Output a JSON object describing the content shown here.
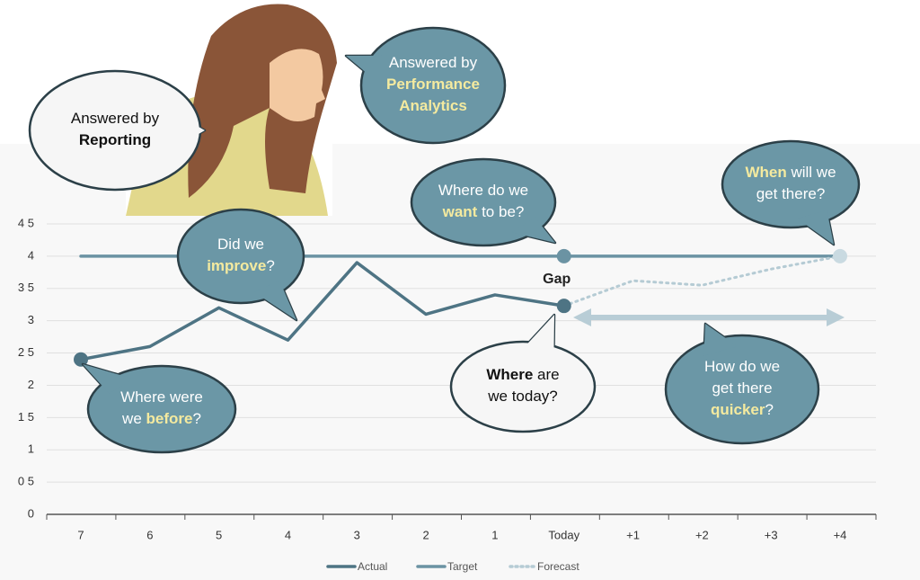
{
  "chart_data": {
    "type": "line",
    "categories": [
      "7",
      "6",
      "5",
      "4",
      "3",
      "2",
      "1",
      "Today",
      "+1",
      "+2",
      "+3",
      "+4"
    ],
    "series": [
      {
        "name": "Actual",
        "color": "#4e7484",
        "style": "solid",
        "values": [
          2.4,
          2.6,
          3.2,
          2.7,
          3.9,
          3.1,
          3.4,
          3.23,
          null,
          null,
          null,
          null
        ]
      },
      {
        "name": "Target",
        "color": "#6b93a3",
        "style": "solid",
        "values": [
          4,
          4,
          4,
          4,
          4,
          4,
          4,
          4,
          4,
          4,
          4,
          4
        ]
      },
      {
        "name": "Forecast",
        "color": "#b5cbd4",
        "style": "dotted",
        "values": [
          null,
          null,
          null,
          null,
          null,
          null,
          null,
          3.23,
          3.62,
          3.55,
          3.8,
          4
        ]
      }
    ],
    "ylim": [
      0,
      4.5
    ],
    "yticks": [
      0,
      {
        "value": 0.5,
        "label": "0 5"
      },
      1,
      {
        "value": 1.5,
        "label": "1 5"
      },
      2,
      {
        "value": 2.5,
        "label": "2 5"
      },
      3,
      {
        "value": 3.5,
        "label": "3 5"
      },
      4,
      {
        "value": 4.5,
        "label": "4 5"
      }
    ],
    "grid": true,
    "gap_label": "Gap",
    "annotations": [
      {
        "fill": "white",
        "lines": [
          [
            {
              "text": "Answered by"
            }
          ],
          [
            {
              "text": "Reporting",
              "emphasis": "bold"
            }
          ]
        ]
      },
      {
        "fill": "teal",
        "lines": [
          [
            {
              "text": "Answered by"
            }
          ],
          [
            {
              "text": "Performance",
              "emphasis": "highlight"
            }
          ],
          [
            {
              "text": "Analytics",
              "emphasis": "highlight"
            }
          ]
        ]
      },
      {
        "fill": "teal",
        "lines": [
          [
            {
              "text": "Did we"
            }
          ],
          [
            {
              "text": "improve",
              "emphasis": "highlight"
            },
            {
              "text": "?"
            }
          ]
        ]
      },
      {
        "fill": "teal",
        "lines": [
          [
            {
              "text": "Where do we"
            }
          ],
          [
            {
              "text": "want",
              "emphasis": "highlight"
            },
            {
              "text": " to be?"
            }
          ]
        ]
      },
      {
        "fill": "teal",
        "lines": [
          [
            {
              "text": "When",
              "emphasis": "highlight"
            },
            {
              "text": " will we"
            }
          ],
          [
            {
              "text": "get there?"
            }
          ]
        ]
      },
      {
        "fill": "teal",
        "lines": [
          [
            {
              "text": "Where were"
            }
          ],
          [
            {
              "text": "we "
            },
            {
              "text": "before",
              "emphasis": "highlight"
            },
            {
              "text": "?"
            }
          ]
        ]
      },
      {
        "fill": "white",
        "lines": [
          [
            {
              "text": "Where",
              "emphasis": "bold"
            },
            {
              "text": " are"
            }
          ],
          [
            {
              "text": "we today?"
            }
          ]
        ]
      },
      {
        "fill": "teal",
        "lines": [
          [
            {
              "text": "How do we"
            }
          ],
          [
            {
              "text": "get there"
            }
          ],
          [
            {
              "text": "quicker",
              "emphasis": "highlight"
            },
            {
              "text": "?"
            }
          ]
        ]
      }
    ]
  }
}
